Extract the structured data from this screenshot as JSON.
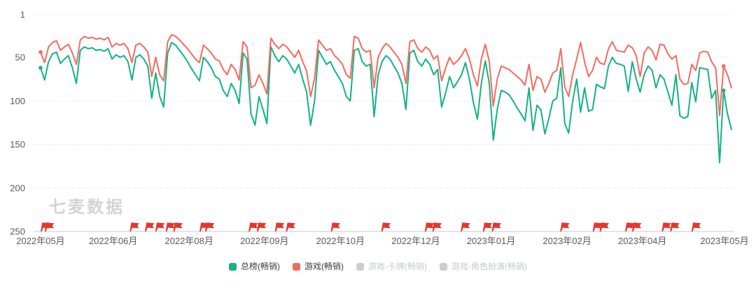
{
  "watermark": "七麦数据",
  "chart_data": {
    "type": "line",
    "title": "",
    "y_axis": {
      "ticks": [
        1,
        50,
        100,
        150,
        200,
        250
      ],
      "min": 1,
      "max": 250,
      "inverted": true,
      "meaning": "app store rank (1 = best)"
    },
    "x_axis": {
      "labels": [
        "2022年05月",
        "2022年06月",
        "2022年08月",
        "2022年09月",
        "2022年10月",
        "2022年12月",
        "2023年01月",
        "2023年02月",
        "2023年04月",
        "2023年05月"
      ],
      "positions": [
        0,
        0.105,
        0.215,
        0.324,
        0.434,
        0.543,
        0.652,
        0.762,
        0.871,
        0.99
      ]
    },
    "grid": {
      "horizontal": true,
      "style": "dotted",
      "color": "#e4e4e4",
      "axis_color": "#c9c9c9",
      "text_color": "#5a5a5a"
    },
    "legend_position": "bottom-center",
    "flags": {
      "color": "#e8352a",
      "positions": [
        0.0,
        0.006,
        0.129,
        0.151,
        0.166,
        0.181,
        0.192,
        0.23,
        0.238,
        0.301,
        0.313,
        0.339,
        0.355,
        0.42,
        0.493,
        0.556,
        0.567,
        0.608,
        0.64,
        0.653,
        0.752,
        0.799,
        0.809,
        0.846,
        0.856,
        0.899,
        0.911,
        0.942
      ]
    },
    "series": [
      {
        "name": "总榜(畅销)",
        "color": "#12b286",
        "enabled": true,
        "dot_indices": [
          0,
          172
        ],
        "values": [
          62,
          76,
          55,
          46,
          44,
          57,
          52,
          48,
          62,
          80,
          42,
          38,
          40,
          39,
          42,
          41,
          43,
          40,
          52,
          47,
          50,
          48,
          55,
          76,
          50,
          47,
          52,
          60,
          97,
          68,
          95,
          107,
          45,
          33,
          36,
          42,
          48,
          55,
          63,
          70,
          77,
          50,
          55,
          62,
          72,
          75,
          88,
          95,
          80,
          88,
          103,
          45,
          52,
          115,
          128,
          95,
          110,
          126,
          38,
          48,
          55,
          48,
          52,
          60,
          68,
          58,
          75,
          90,
          128,
          100,
          42,
          50,
          58,
          55,
          65,
          72,
          80,
          95,
          100,
          42,
          40,
          55,
          60,
          58,
          118,
          70,
          55,
          48,
          52,
          60,
          68,
          80,
          110,
          45,
          42,
          55,
          60,
          52,
          58,
          70,
          64,
          107,
          91,
          72,
          85,
          78,
          70,
          56,
          75,
          102,
          121,
          80,
          54,
          80,
          145,
          110,
          88,
          90,
          93,
          100,
          108,
          115,
          123,
          85,
          134,
          105,
          110,
          138,
          120,
          100,
          97,
          62,
          126,
          137,
          100,
          75,
          113,
          85,
          112,
          110,
          81,
          84,
          86,
          60,
          50,
          57,
          58,
          60,
          89,
          55,
          75,
          90,
          70,
          60,
          65,
          85,
          70,
          75,
          90,
          105,
          70,
          117,
          120,
          118,
          79,
          101,
          62,
          63,
          64,
          97,
          88,
          171,
          88,
          115,
          133
        ]
      },
      {
        "name": "游戏(畅销)",
        "color": "#f56a5e",
        "enabled": true,
        "dot_indices": [
          0,
          172
        ],
        "values": [
          44,
          56,
          38,
          33,
          31,
          42,
          38,
          35,
          45,
          58,
          30,
          26,
          28,
          27,
          29,
          28,
          30,
          27,
          38,
          34,
          36,
          34,
          40,
          56,
          36,
          34,
          38,
          44,
          72,
          50,
          70,
          77,
          32,
          24,
          26,
          30,
          35,
          40,
          46,
          52,
          56,
          36,
          40,
          45,
          52,
          54,
          64,
          70,
          58,
          64,
          76,
          32,
          38,
          85,
          82,
          70,
          80,
          92,
          28,
          35,
          40,
          35,
          38,
          44,
          50,
          42,
          55,
          66,
          95,
          74,
          30,
          36,
          42,
          40,
          48,
          52,
          58,
          70,
          74,
          26,
          28,
          40,
          44,
          42,
          85,
          50,
          40,
          34,
          38,
          44,
          50,
          58,
          80,
          32,
          30,
          40,
          44,
          38,
          42,
          52,
          48,
          77,
          62,
          50,
          58,
          54,
          48,
          40,
          52,
          70,
          83,
          52,
          35,
          55,
          106,
          75,
          60,
          62,
          64,
          68,
          72,
          76,
          82,
          58,
          88,
          72,
          75,
          90,
          80,
          68,
          65,
          40,
          84,
          95,
          70,
          52,
          33,
          55,
          72,
          65,
          50,
          57,
          58,
          40,
          32,
          42,
          43,
          44,
          36,
          39,
          48,
          72,
          45,
          38,
          42,
          53,
          35,
          36,
          46,
          52,
          48,
          75,
          81,
          80,
          58,
          65,
          45,
          43,
          44,
          55,
          62,
          117,
          60,
          70,
          85
        ]
      },
      {
        "name": "游戏-卡牌(畅销)",
        "color": "#c9cdd4",
        "enabled": false,
        "dot_indices": [],
        "values": []
      },
      {
        "name": "游戏-角色扮演(畅销)",
        "color": "#c9cdd4",
        "enabled": false,
        "dot_indices": [],
        "values": []
      }
    ]
  }
}
